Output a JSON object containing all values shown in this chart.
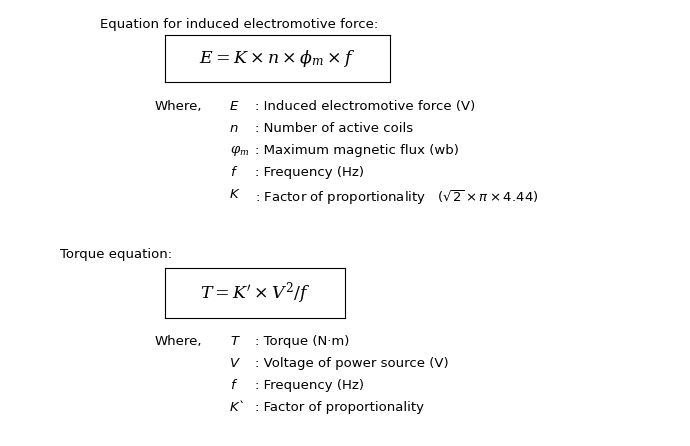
{
  "bg_color": "#ffffff",
  "title1": "Equation for induced electromotive force:",
  "title2": "Torque equation:",
  "eq1": "$E = K \\times n \\times \\phi_m \\times f$",
  "eq2": "$T = K'\\times V^2 / f$",
  "where1_items": [
    [
      "E",
      ": Induced electromotive force (V)"
    ],
    [
      "n",
      ": Number of active coils"
    ],
    [
      "$\\varphi_m$",
      ": Maximum magnetic flux (wb)"
    ],
    [
      "f",
      ": Frequency (Hz)"
    ],
    [
      "K",
      ": Factor of proportionality   ($\\sqrt{2} \\times \\pi \\times 4.44$)"
    ]
  ],
  "where2_items": [
    [
      "T",
      ": Torque (N·m)"
    ],
    [
      "V",
      ": Voltage of power source (V)"
    ],
    [
      "f",
      ": Frequency (Hz)"
    ],
    [
      "K`",
      ": Factor of proportionality"
    ]
  ],
  "fs_title": 9.5,
  "fs_eq": 12.5,
  "fs_items": 9.5
}
